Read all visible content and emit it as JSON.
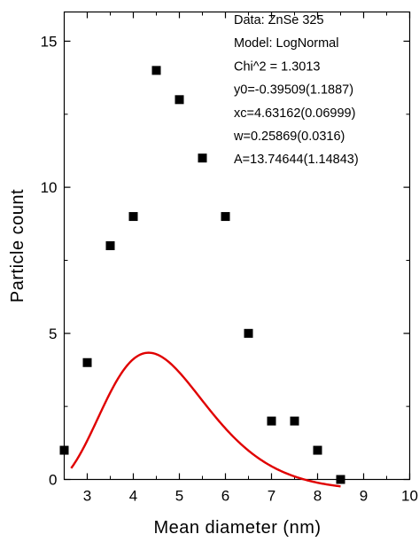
{
  "chart_data": {
    "type": "scatter",
    "xlabel": "Mean diameter (nm)",
    "ylabel": "Particle count",
    "xlim": [
      2.5,
      10
    ],
    "ylim": [
      0,
      16
    ],
    "x_ticks": [
      3,
      4,
      5,
      6,
      7,
      8,
      9,
      10
    ],
    "y_ticks": [
      0,
      5,
      10,
      15
    ],
    "x_tick_labels": [
      "3",
      "4",
      "5",
      "6",
      "7",
      "8",
      "9",
      "10"
    ],
    "y_tick_labels": [
      "0",
      "5",
      "10",
      "15"
    ],
    "grid": false,
    "series": [
      {
        "kind": "points",
        "marker": "square",
        "color": "#000000",
        "x": [
          2.5,
          3.0,
          3.5,
          4.0,
          4.5,
          5.0,
          5.5,
          6.0,
          6.5,
          7.0,
          7.5,
          8.0,
          8.5
        ],
        "y": [
          1,
          4,
          8,
          9,
          14,
          13,
          11,
          9,
          5,
          2,
          2,
          1,
          0
        ]
      },
      {
        "kind": "fit",
        "model": "LogNormal",
        "color": "#e00000",
        "x_range": [
          2.65,
          8.5
        ],
        "params": {
          "y0": -0.39509,
          "xc": 4.63162,
          "w": 0.25869,
          "A": 13.74644
        }
      }
    ],
    "annotations": [
      "Data: ZnSe 325",
      "Model: LogNormal",
      "Chi^2 = 1.3013",
      "y0=-0.39509(1.1887)",
      "xc=4.63162(0.06999)",
      "w=0.25869(0.0316)",
      "A=13.74644(1.14843)"
    ]
  }
}
